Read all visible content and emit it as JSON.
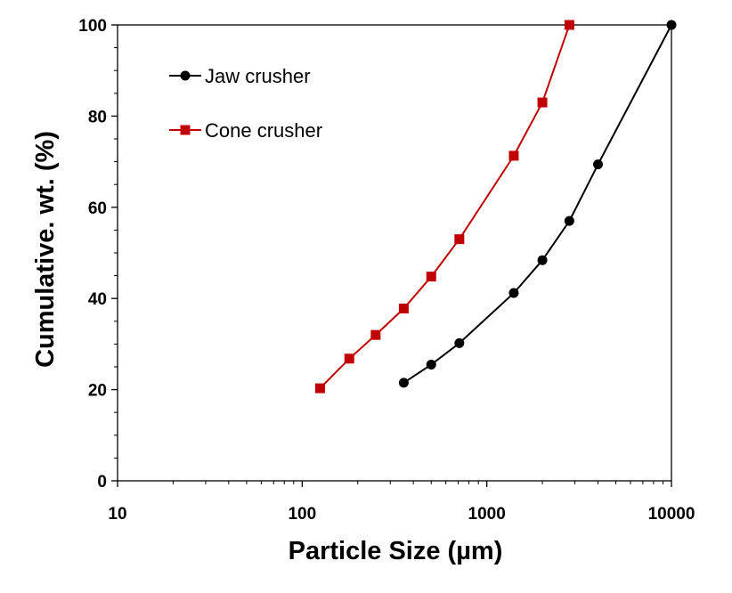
{
  "chart_data": {
    "type": "line",
    "title": "",
    "xlabel": "Particle Size (µm)",
    "ylabel": "Cumulative. wt. (%)",
    "xscale": "log",
    "xlim": [
      10,
      10000
    ],
    "ylim": [
      0,
      100
    ],
    "x_ticks": [
      10,
      100,
      1000,
      10000
    ],
    "x_tick_labels": [
      "10",
      "100",
      "1000",
      "10000"
    ],
    "y_ticks": [
      0,
      20,
      40,
      60,
      80,
      100
    ],
    "y_tick_labels": [
      "0",
      "20",
      "40",
      "60",
      "80",
      "100"
    ],
    "grid": false,
    "legend_position": "top-left",
    "series": [
      {
        "name": "Jaw crusher",
        "color": "#000000",
        "marker": "circle",
        "x": [
          355,
          500,
          710,
          1400,
          2000,
          2800,
          4000,
          10000
        ],
        "y": [
          21.5,
          25.5,
          30.2,
          41.2,
          48.4,
          57,
          69.4,
          100
        ]
      },
      {
        "name": "Cone crusher",
        "color": "#c00000",
        "marker": "square",
        "x": [
          125,
          180,
          250,
          355,
          500,
          710,
          1400,
          2000,
          2800
        ],
        "y": [
          20.3,
          26.8,
          32,
          37.8,
          44.8,
          53,
          71.3,
          83,
          100
        ]
      }
    ]
  }
}
